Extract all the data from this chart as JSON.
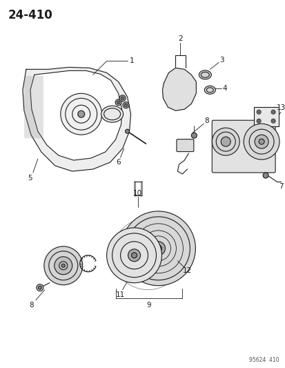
{
  "title_number": "24-410",
  "watermark": "95624  410",
  "bg_color": "#ffffff",
  "line_color": "#1a1a1a",
  "title_fontsize": 12,
  "label_fontsize": 7.5,
  "watermark_fontsize": 5.5
}
